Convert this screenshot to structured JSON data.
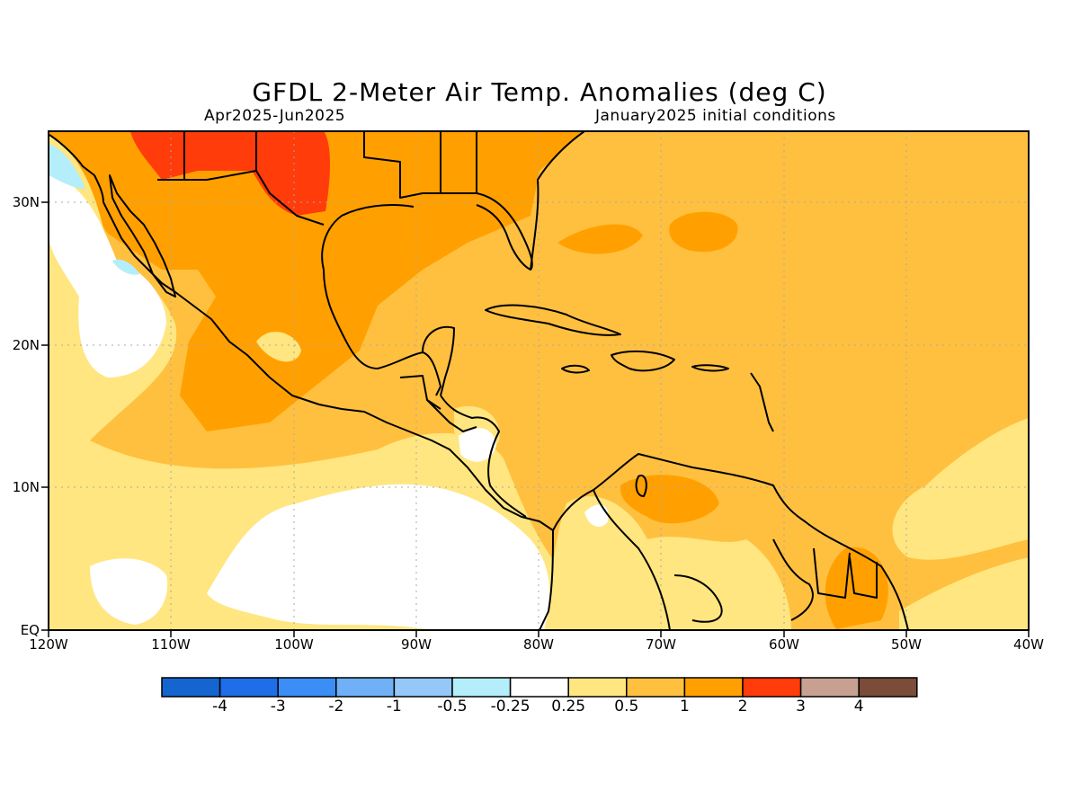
{
  "title": "GFDL 2-Meter Air Temp. Anomalies (deg C)",
  "subtitle_left": "Apr2025-Jun2025",
  "subtitle_right": "January2025 initial conditions",
  "map": {
    "lon_range": [
      -120,
      -40
    ],
    "lat_range": [
      0,
      35
    ],
    "x_ticks": [
      {
        "value": -120,
        "label": "120W"
      },
      {
        "value": -110,
        "label": "110W"
      },
      {
        "value": -100,
        "label": "100W"
      },
      {
        "value": -90,
        "label": "90W"
      },
      {
        "value": -80,
        "label": "80W"
      },
      {
        "value": -70,
        "label": "70W"
      },
      {
        "value": -60,
        "label": "60W"
      },
      {
        "value": -50,
        "label": "50W"
      },
      {
        "value": -40,
        "label": "40W"
      }
    ],
    "y_ticks": [
      {
        "value": 0,
        "label": "EQ"
      },
      {
        "value": 10,
        "label": "10N"
      },
      {
        "value": 20,
        "label": "20N"
      },
      {
        "value": 30,
        "label": "30N"
      }
    ],
    "gridlines": true
  },
  "colorbar": {
    "colors": [
      "#1565d0",
      "#1e6ee8",
      "#3a8ef5",
      "#6fb0f7",
      "#94c8f8",
      "#b4eefa",
      "#ffffff",
      "#ffe680",
      "#ffc040",
      "#ffa000",
      "#ff3c0a",
      "#c8a092",
      "#7b4c3a"
    ],
    "labels": [
      "-4",
      "-3",
      "-2",
      "-1",
      "-0.5",
      "-0.25",
      "0.25",
      "0.5",
      "1",
      "2",
      "3",
      "4"
    ]
  },
  "palette": {
    "level_0_25_0_5": "#ffe680",
    "level_0_5_1": "#ffc040",
    "level_1_2": "#ffa000",
    "level_2_3": "#ff3c0a",
    "level_neg_0_25_neg_0_5": "#b4eefa",
    "neutral": "#ffffff"
  }
}
